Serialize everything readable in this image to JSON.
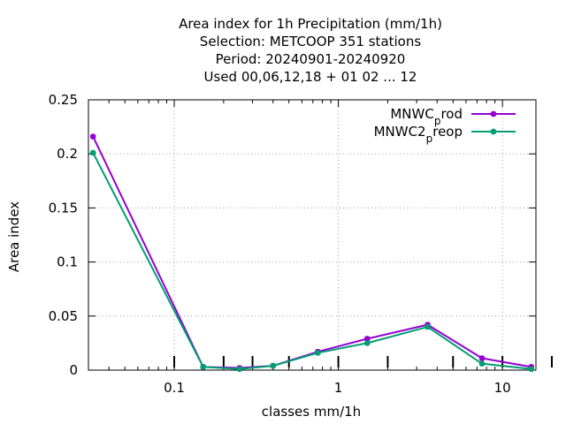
{
  "chart_data": {
    "type": "line",
    "title_lines": [
      "Area index  for 1h Precipitation (mm/1h)",
      "Selection: METCOOP    351 stations",
      "Period: 20240901-20240920",
      "Used  00,06,12,18 + 01 02 ... 12"
    ],
    "xlabel": "classes mm/1h",
    "ylabel": "Area index",
    "x_scale": "log",
    "xlim": [
      0.03,
      16
    ],
    "ylim": [
      0,
      0.25
    ],
    "x_ticks": [
      {
        "value": 0.1,
        "label": "0.1"
      },
      {
        "value": 1,
        "label": "1"
      },
      {
        "value": 10,
        "label": "10"
      }
    ],
    "y_ticks": [
      {
        "value": 0,
        "label": "0"
      },
      {
        "value": 0.05,
        "label": "0.05"
      },
      {
        "value": 0.1,
        "label": "0.1"
      },
      {
        "value": 0.15,
        "label": "0.15"
      },
      {
        "value": 0.2,
        "label": "0.2"
      },
      {
        "value": 0.25,
        "label": "0.25"
      }
    ],
    "class_markers": [
      0.1,
      0.2,
      0.3,
      0.5,
      1,
      2,
      5,
      10,
      20
    ],
    "grid": true,
    "legend_position": "top-right",
    "series": [
      {
        "name_main": "MNWC",
        "name_sub": "p",
        "name_rest": "rod",
        "color": "#9400d3",
        "x": [
          0.032,
          0.15,
          0.25,
          0.4,
          0.75,
          1.5,
          3.5,
          7.5,
          15
        ],
        "y": [
          0.216,
          0.003,
          0.002,
          0.004,
          0.017,
          0.029,
          0.042,
          0.011,
          0.003
        ]
      },
      {
        "name_main": "MNWC2",
        "name_sub": "p",
        "name_rest": "reop",
        "color": "#009e73",
        "x": [
          0.032,
          0.15,
          0.25,
          0.4,
          0.75,
          1.5,
          3.5,
          7.5,
          15
        ],
        "y": [
          0.201,
          0.003,
          0.001,
          0.004,
          0.016,
          0.025,
          0.04,
          0.006,
          0.001
        ]
      }
    ]
  }
}
